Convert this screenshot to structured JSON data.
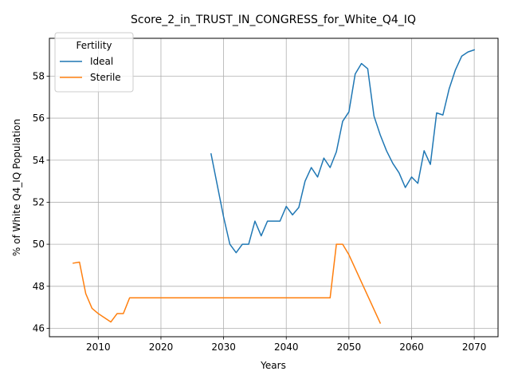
{
  "chart_data": {
    "type": "line",
    "title": "Score_2_in_TRUST_IN_CONGRESS_for_White_Q4_IQ",
    "xlabel": "Years",
    "ylabel": "% of White Q4_IQ Population",
    "xlim": [
      2002.2,
      2073.8
    ],
    "ylim": [
      45.6,
      59.8
    ],
    "xticks": [
      2010,
      2020,
      2030,
      2040,
      2050,
      2060,
      2070
    ],
    "yticks": [
      46,
      48,
      50,
      52,
      54,
      56,
      58
    ],
    "grid": true,
    "legend": {
      "title": "Fertility",
      "position": "top-left"
    },
    "series": [
      {
        "name": "Ideal",
        "color": "#1f77b4",
        "x": [
          2028,
          2029,
          2030,
          2031,
          2032,
          2033,
          2034,
          2035,
          2036,
          2037,
          2038,
          2039,
          2040,
          2041,
          2042,
          2043,
          2044,
          2045,
          2046,
          2047,
          2048,
          2049,
          2050,
          2051,
          2052,
          2053,
          2054,
          2055,
          2056,
          2057,
          2058,
          2059,
          2060,
          2061,
          2062,
          2063,
          2064,
          2065,
          2066,
          2067,
          2068,
          2069,
          2070
        ],
        "values": [
          54.3,
          52.8,
          51.3,
          50.0,
          49.6,
          50.0,
          50.0,
          51.1,
          50.4,
          51.1,
          51.1,
          51.1,
          51.8,
          51.4,
          51.75,
          53.0,
          53.65,
          53.2,
          54.1,
          53.65,
          54.4,
          55.85,
          56.3,
          58.1,
          58.6,
          58.35,
          56.1,
          55.2,
          54.45,
          53.85,
          53.4,
          52.7,
          53.2,
          52.9,
          54.45,
          53.8,
          56.25,
          56.15,
          57.4,
          58.3,
          58.95,
          59.15,
          59.25
        ]
      },
      {
        "name": "Sterile",
        "color": "#ff7f0e",
        "x": [
          2006,
          2007,
          2008,
          2009,
          2010,
          2011,
          2012,
          2013,
          2014,
          2015,
          2016,
          2017,
          2018,
          2019,
          2020,
          2021,
          2022,
          2023,
          2024,
          2025,
          2026,
          2027,
          2028,
          2029,
          2030,
          2031,
          2032,
          2033,
          2034,
          2035,
          2036,
          2037,
          2038,
          2039,
          2040,
          2041,
          2042,
          2043,
          2044,
          2045,
          2046,
          2047,
          2048,
          2049,
          2050,
          2051,
          2052,
          2053,
          2054,
          2055
        ],
        "values": [
          49.1,
          49.15,
          47.65,
          46.95,
          46.7,
          46.5,
          46.3,
          46.7,
          46.7,
          47.45,
          47.45,
          47.45,
          47.45,
          47.45,
          47.45,
          47.45,
          47.45,
          47.45,
          47.45,
          47.45,
          47.45,
          47.45,
          47.45,
          47.45,
          47.45,
          47.45,
          47.45,
          47.45,
          47.45,
          47.45,
          47.45,
          47.45,
          47.45,
          47.45,
          47.45,
          47.45,
          47.45,
          47.45,
          47.45,
          47.45,
          47.45,
          47.45,
          50.0,
          50.0,
          49.5,
          48.85,
          48.2,
          47.55,
          46.9,
          46.25
        ]
      }
    ]
  }
}
